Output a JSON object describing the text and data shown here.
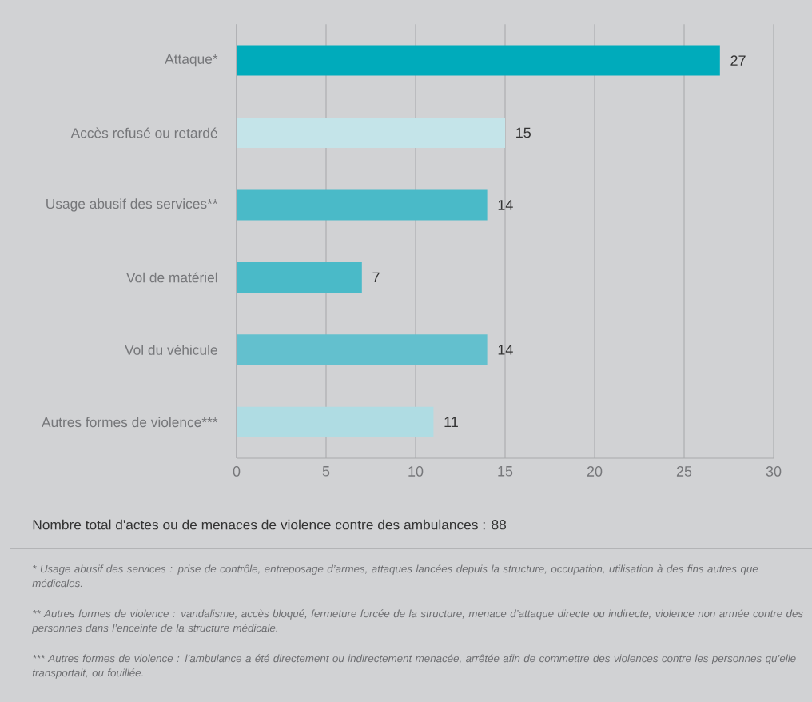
{
  "chart_data": {
    "type": "bar",
    "orientation": "horizontal",
    "categories": [
      "Attaque*",
      "Accès refusé ou retardé",
      "Usage abusif des services**",
      "Vol de matériel",
      "Vol du véhicule",
      "Autres formes de violence***"
    ],
    "values": [
      27,
      15,
      14,
      7,
      14,
      11
    ],
    "colors": [
      "#00abbb",
      "#c4e4e9",
      "#4abac8",
      "#4abac8",
      "#63c0ce",
      "#afdce3"
    ],
    "xlim": [
      0,
      30
    ],
    "xticks": [
      0,
      5,
      10,
      15,
      20,
      25,
      30
    ],
    "grid": "x",
    "data_labels": true,
    "annotations": [
      "Nombre total d'actes ou de menaces de violence contre des ambulances : 88",
      "* Usage abusif des services : prise de contrôle, entreposage d’armes, attaques lancées depuis la structure, occupation, utilisation à des fins autres que médicales.",
      "** Autres formes de violence : vandalisme, accès bloqué, fermeture forcée de la structure, menace d’attaque directe ou indirecte, violence non armée contre des personnes dans l’enceinte de la structure médicale.",
      "*** Autres formes de violence : l’ambulance a été directement ou indirectement menacée, arrêtée afin de commettre des violences contre les personnes qu’elle transportait, ou fouillée."
    ]
  }
}
